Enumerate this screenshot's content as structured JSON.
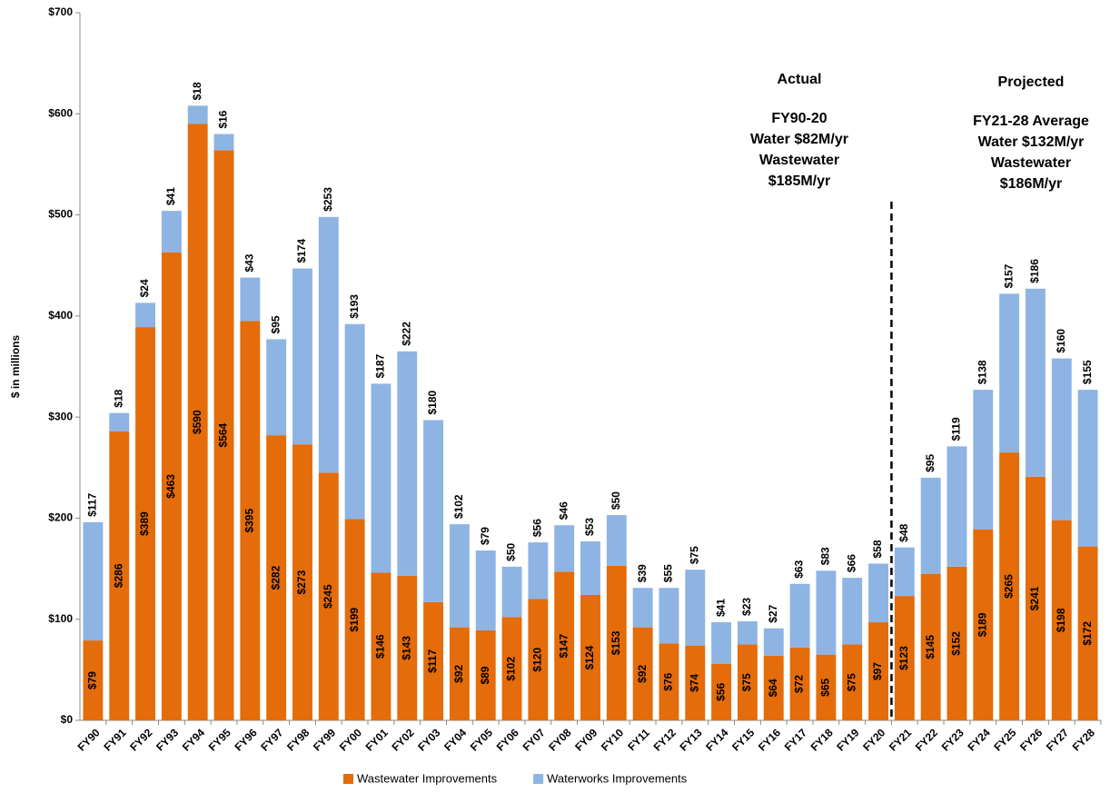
{
  "chart_data": {
    "type": "stacked_bar",
    "categories": [
      "FY90",
      "FY91",
      "FY92",
      "FY93",
      "FY94",
      "FY95",
      "FY96",
      "FY97",
      "FY98",
      "FY99",
      "FY00",
      "FY01",
      "FY02",
      "FY03",
      "FY04",
      "FY05",
      "FY06",
      "FY07",
      "FY08",
      "FY09",
      "FY10",
      "FY11",
      "FY12",
      "FY13",
      "FY14",
      "FY15",
      "FY16",
      "FY17",
      "FY18",
      "FY19",
      "FY20",
      "FY21",
      "FY22",
      "FY23",
      "FY24",
      "FY25",
      "FY26",
      "FY27",
      "FY28"
    ],
    "series": [
      {
        "name": "Wastewater Improvements",
        "color": "#e46c0a",
        "values": [
          79,
          286,
          389,
          463,
          590,
          564,
          395,
          282,
          273,
          245,
          199,
          146,
          143,
          117,
          92,
          89,
          102,
          120,
          147,
          124,
          153,
          92,
          76,
          74,
          56,
          75,
          64,
          72,
          65,
          75,
          97,
          123,
          145,
          152,
          189,
          265,
          241,
          198,
          172
        ],
        "value_labels": [
          "$79",
          "$286",
          "$389",
          "$463",
          "$590",
          "$564",
          "$395",
          "$282",
          "$273",
          "$245",
          "$199",
          "$146",
          "$143",
          "$117",
          "$92",
          "$89",
          "$102",
          "$120",
          "$147",
          "$124",
          "$153",
          "$92",
          "$76",
          "$74",
          "$56",
          "$75",
          "$64",
          "$72",
          "$65",
          "$75",
          "$97",
          "$123",
          "$145",
          "$152",
          "$189",
          "$265",
          "$241",
          "$198",
          "$172"
        ]
      },
      {
        "name": "Waterworks Improvements",
        "color": "#8eb4e3",
        "values": [
          117,
          18,
          24,
          41,
          18,
          16,
          43,
          95,
          174,
          253,
          193,
          187,
          222,
          180,
          102,
          79,
          50,
          56,
          46,
          53,
          50,
          39,
          55,
          75,
          41,
          23,
          27,
          63,
          83,
          66,
          58,
          48,
          95,
          119,
          138,
          157,
          186,
          160,
          155
        ],
        "value_labels": [
          "$117",
          "$18",
          "$24",
          "$41",
          "$18",
          "$16",
          "$43",
          "$95",
          "$174",
          "$253",
          "$193",
          "$187",
          "$222",
          "$180",
          "$102",
          "$79",
          "$50",
          "$56",
          "$46",
          "$53",
          "$50",
          "$39",
          "$55",
          "$75",
          "$41",
          "$23",
          "$27",
          "$63",
          "$83",
          "$66",
          "$58",
          "$48",
          "$95",
          "$119",
          "$138",
          "$157",
          "$186",
          "$160",
          "$155"
        ]
      }
    ],
    "ylabel": "$ in millions",
    "ylim": [
      0,
      700
    ],
    "yticks": [
      {
        "value": 0,
        "label": "$0"
      },
      {
        "value": 100,
        "label": "$100"
      },
      {
        "value": 200,
        "label": "$200"
      },
      {
        "value": 300,
        "label": "$300"
      },
      {
        "value": 400,
        "label": "$400"
      },
      {
        "value": 500,
        "label": "$500"
      },
      {
        "value": 600,
        "label": "$600"
      },
      {
        "value": 700,
        "label": "$700"
      }
    ],
    "annotations": [
      [
        "Actual",
        "FY90-20",
        "Water $82M/yr",
        "Wastewater",
        "$185M/yr"
      ],
      [
        "Projected",
        "FY21-28 Average",
        "Water $132M/yr",
        "Wastewater",
        "$186M/yr"
      ]
    ],
    "legend": "bottom"
  }
}
